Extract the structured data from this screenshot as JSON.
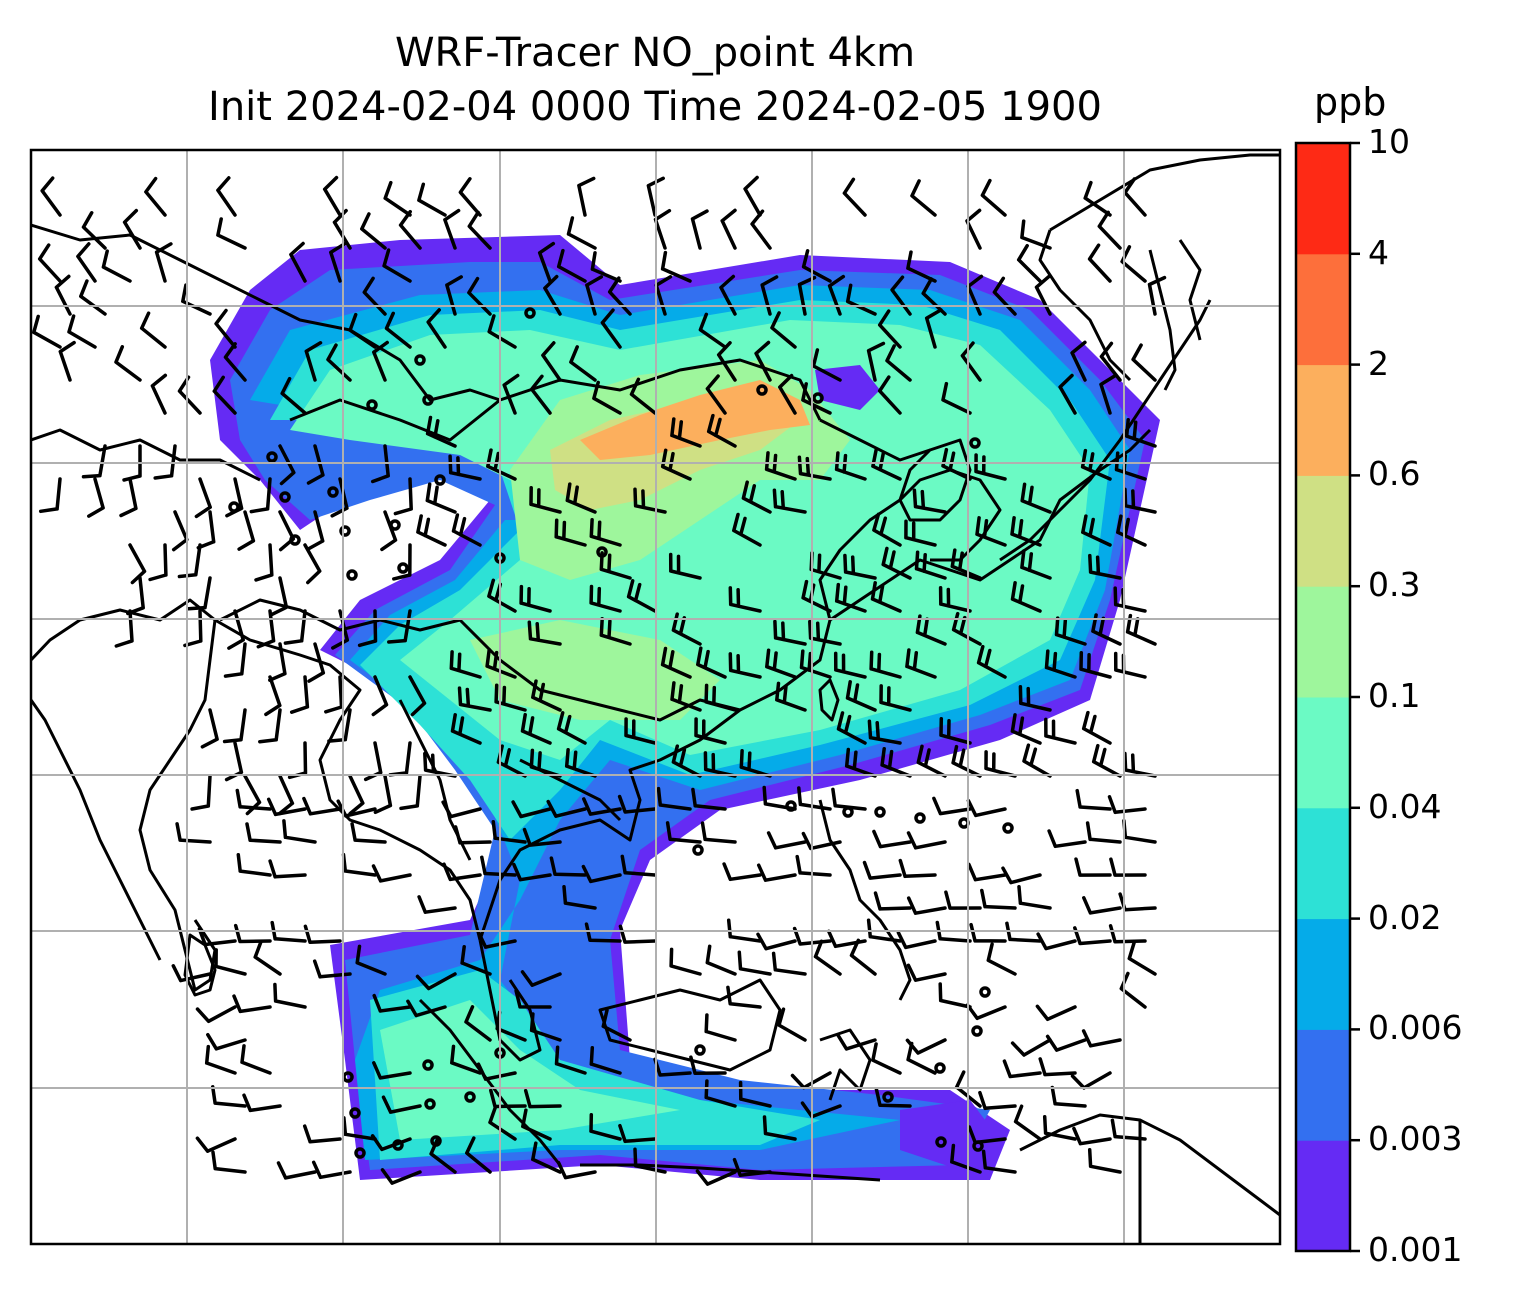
{
  "title": {
    "line1": "WRF-Tracer NO_point 4km",
    "line2": "Init 2024-02-04 0000 Time 2024-02-05 1900"
  },
  "colorbar": {
    "unit": "ppb",
    "levels": [
      "0.001",
      "0.003",
      "0.006",
      "0.02",
      "0.04",
      "0.1",
      "0.3",
      "0.6",
      "2",
      "4",
      "10"
    ],
    "colors": [
      "#652bf4",
      "#3370f0",
      "#05abe9",
      "#2de1d6",
      "#6bfac4",
      "#9ef69c",
      "#cfe084",
      "#fcaf5d",
      "#fd6f3b",
      "#fe2a15"
    ]
  },
  "map": {
    "grid": true,
    "features": [
      "coastlines",
      "country-borders",
      "wind-barbs",
      "tracer-concentration"
    ]
  }
}
